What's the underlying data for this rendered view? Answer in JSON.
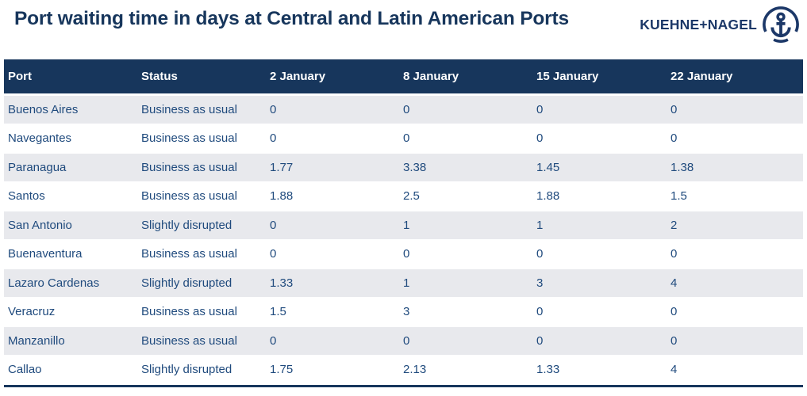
{
  "title": "Port waiting time in days at Central and Latin American Ports",
  "logo": {
    "brand": "KUEHNE+NAGEL",
    "icon": "anchor-in-circle-icon"
  },
  "colors": {
    "navy": "#17365c",
    "cell_text": "#1f4a7d",
    "stripe": "#e8e9ed",
    "header_text": "#ffffff",
    "logo_navy": "#1c3868"
  },
  "table": {
    "columns": [
      "Port",
      "Status",
      "2 January",
      "8 January",
      "15 January",
      "22 January"
    ],
    "rows": [
      {
        "port": "Buenos Aires",
        "status": "Business as usual",
        "values": [
          "0",
          "0",
          "0",
          "0"
        ]
      },
      {
        "port": "Navegantes",
        "status": "Business as usual",
        "values": [
          "0",
          "0",
          "0",
          "0"
        ]
      },
      {
        "port": "Paranagua",
        "status": "Business as usual",
        "values": [
          "1.77",
          "3.38",
          "1.45",
          "1.38"
        ]
      },
      {
        "port": "Santos",
        "status": "Business as usual",
        "values": [
          "1.88",
          "2.5",
          "1.88",
          "1.5"
        ]
      },
      {
        "port": "San Antonio",
        "status": "Slightly disrupted",
        "values": [
          "0",
          "1",
          "1",
          "2"
        ]
      },
      {
        "port": "Buenaventura",
        "status": "Business as usual",
        "values": [
          "0",
          "0",
          "0",
          "0"
        ]
      },
      {
        "port": "Lazaro Cardenas",
        "status": "Slightly disrupted",
        "values": [
          "1.33",
          "1",
          "3",
          "4"
        ]
      },
      {
        "port": "Veracruz",
        "status": "Business as usual",
        "values": [
          "1.5",
          "3",
          "0",
          "0"
        ]
      },
      {
        "port": "Manzanillo",
        "status": "Business as usual",
        "values": [
          "0",
          "0",
          "0",
          "0"
        ]
      },
      {
        "port": "Callao",
        "status": "Slightly disrupted",
        "values": [
          "1.75",
          "2.13",
          "1.33",
          "4"
        ]
      }
    ]
  },
  "chart_data": {
    "type": "table",
    "title": "Port waiting time in days at Central and Latin American Ports",
    "unit": "days",
    "categories": [
      "2 January",
      "8 January",
      "15 January",
      "22 January"
    ],
    "series": [
      {
        "name": "Buenos Aires",
        "status": "Business as usual",
        "values": [
          0,
          0,
          0,
          0
        ]
      },
      {
        "name": "Navegantes",
        "status": "Business as usual",
        "values": [
          0,
          0,
          0,
          0
        ]
      },
      {
        "name": "Paranagua",
        "status": "Business as usual",
        "values": [
          1.77,
          3.38,
          1.45,
          1.38
        ]
      },
      {
        "name": "Santos",
        "status": "Business as usual",
        "values": [
          1.88,
          2.5,
          1.88,
          1.5
        ]
      },
      {
        "name": "San Antonio",
        "status": "Slightly disrupted",
        "values": [
          0,
          1,
          1,
          2
        ]
      },
      {
        "name": "Buenaventura",
        "status": "Business as usual",
        "values": [
          0,
          0,
          0,
          0
        ]
      },
      {
        "name": "Lazaro Cardenas",
        "status": "Slightly disrupted",
        "values": [
          1.33,
          1,
          3,
          4
        ]
      },
      {
        "name": "Veracruz",
        "status": "Business as usual",
        "values": [
          1.5,
          3,
          0,
          0
        ]
      },
      {
        "name": "Manzanillo",
        "status": "Business as usual",
        "values": [
          0,
          0,
          0,
          0
        ]
      },
      {
        "name": "Callao",
        "status": "Slightly disrupted",
        "values": [
          1.75,
          2.13,
          1.33,
          4
        ]
      }
    ]
  }
}
